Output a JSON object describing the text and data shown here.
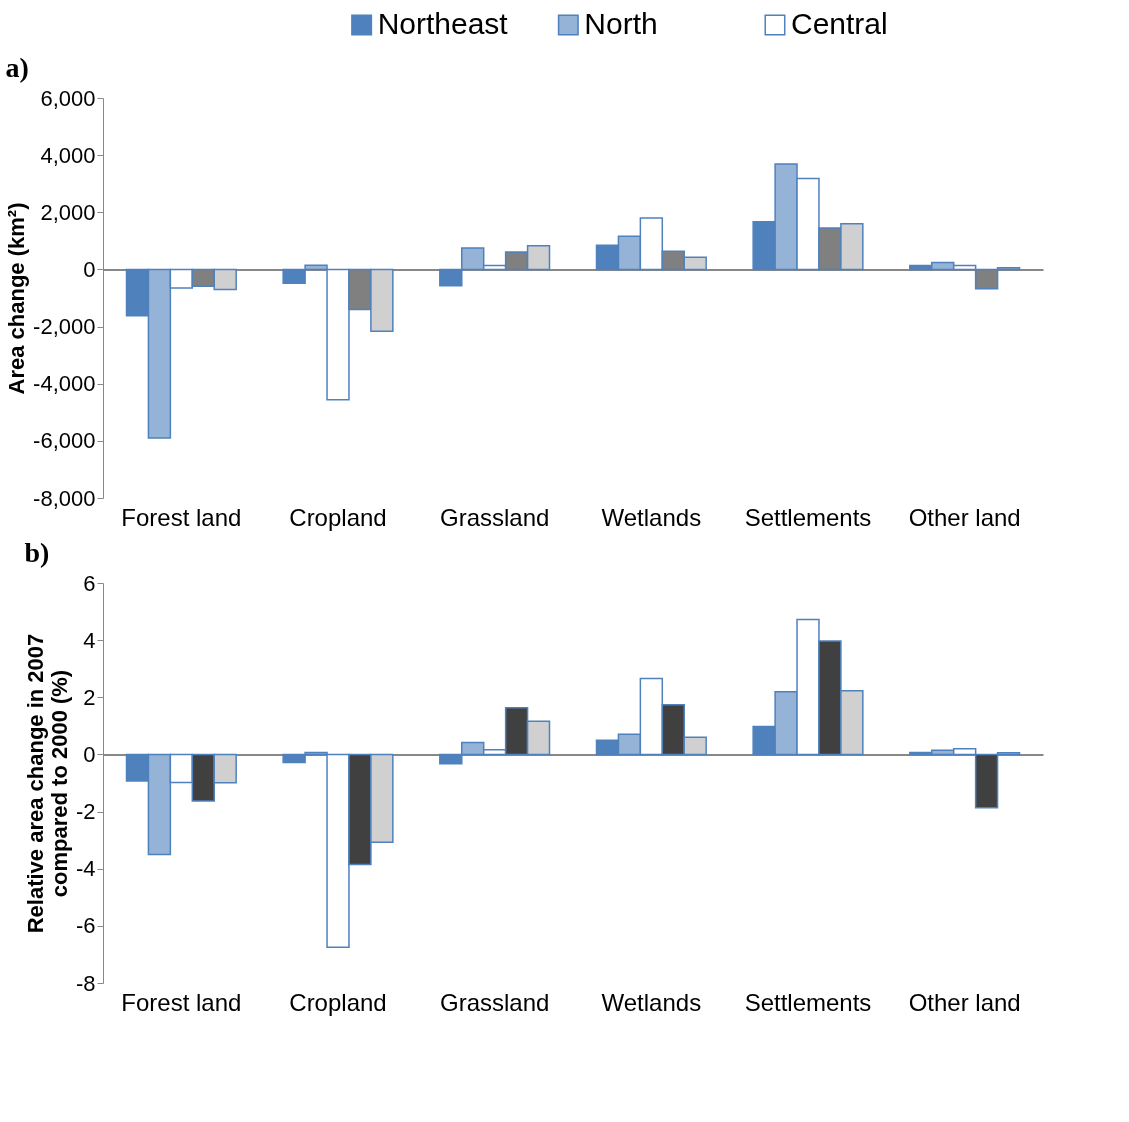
{
  "chart_data": [
    {
      "type": "bar",
      "title": "a)",
      "ylabel": "Area change (km²)",
      "legend": "top",
      "categories": [
        "Forest land",
        "Cropland",
        "Grassland",
        "Wetlands",
        "Settlements",
        "Other land"
      ],
      "ylim": [
        -8000,
        6000
      ],
      "yticks": [
        {
          "value": -8000,
          "label": "-8,000"
        },
        {
          "value": -6000,
          "label": "-6,000"
        },
        {
          "value": -4000,
          "label": "-4,000"
        },
        {
          "value": -2000,
          "label": "-2,000"
        },
        0,
        {
          "value": 2000,
          "label": "2,000"
        },
        {
          "value": 4000,
          "label": "4,000"
        },
        {
          "value": 6000,
          "label": "6,000"
        }
      ],
      "series": [
        {
          "name": "Northeast",
          "color": "#4f81bd",
          "values": [
            -1620,
            -480,
            -570,
            850,
            1670,
            140
          ]
        },
        {
          "name": "North",
          "color": "#95b3d7",
          "values": [
            -5900,
            150,
            750,
            1160,
            3690,
            240
          ]
        },
        {
          "name": "Central",
          "color": "#ffffff",
          "values": [
            -650,
            -4560,
            140,
            1800,
            3180,
            140
          ]
        },
        {
          "color": "#808080",
          "values": [
            -590,
            -1400,
            610,
            640,
            1450,
            -680
          ]
        },
        {
          "color": "#d0d0d0",
          "values": [
            -700,
            -2160,
            830,
            430,
            1600,
            60
          ]
        }
      ]
    },
    {
      "type": "bar",
      "title": "b)",
      "ylabel": "Relative area change in 2007 compared to 2000 (%)",
      "categories": [
        "Forest land",
        "Cropland",
        "Grassland",
        "Wetlands",
        "Settlements",
        "Other land"
      ],
      "ylim": [
        -8,
        6
      ],
      "yticks": [
        -8,
        -6,
        -4,
        -2,
        0,
        2,
        4,
        6
      ],
      "series": [
        {
          "color": "#4f81bd",
          "values": [
            -0.93,
            -0.28,
            -0.33,
            0.5,
            0.98,
            0.07
          ]
        },
        {
          "color": "#95b3d7",
          "values": [
            -3.5,
            0.07,
            0.42,
            0.71,
            2.19,
            0.15
          ]
        },
        {
          "color": "#ffffff",
          "values": [
            -0.98,
            -6.75,
            0.16,
            2.66,
            4.72,
            0.2
          ]
        },
        {
          "color": "#404040",
          "values": [
            -1.63,
            -3.85,
            1.63,
            1.74,
            3.97,
            -1.87
          ]
        },
        {
          "color": "#d0d0d0",
          "values": [
            -0.99,
            -3.07,
            1.16,
            0.6,
            2.23,
            0.06
          ]
        }
      ]
    }
  ]
}
